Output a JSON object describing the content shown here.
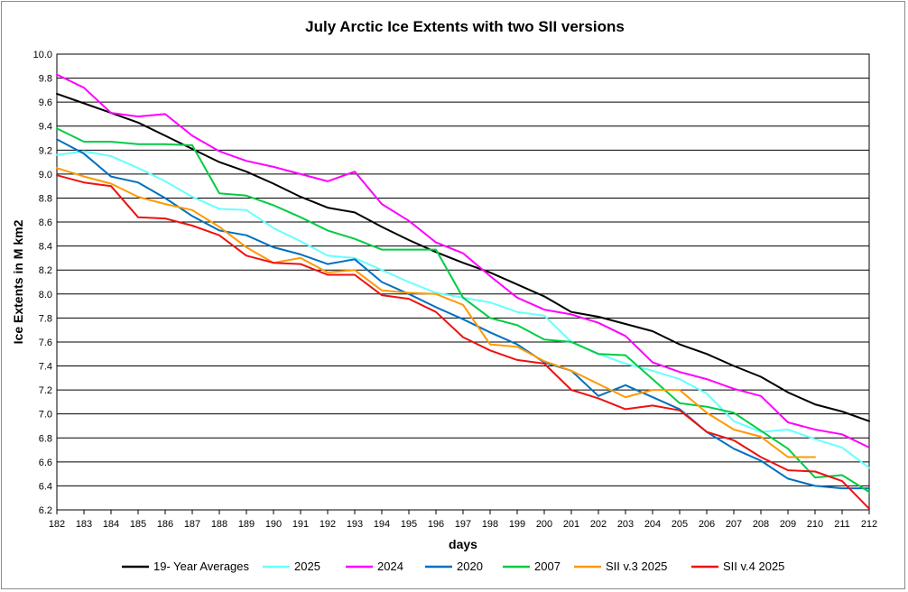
{
  "chart_data": {
    "type": "line",
    "title": "July  Arctic Ice Extents with two SII versions",
    "xlabel": "days",
    "ylabel": "Ice Extents in M km2",
    "xlim": [
      182,
      212
    ],
    "ylim": [
      6.2,
      10.0
    ],
    "ytick_step": 0.2,
    "grid": true,
    "legend_position": "bottom",
    "y_tick_labels": [
      "10.0",
      "9.8",
      "9.6",
      "9.4",
      "9.2",
      "9.0",
      "8.8",
      "8.6",
      "8.4",
      "8.2",
      "8.0",
      "7.8",
      "7.6",
      "7.4",
      "7.2",
      "7.0",
      "6.8",
      "6.6",
      "6.4",
      "6.2"
    ],
    "x_tick_labels": [
      "182",
      "183",
      "184",
      "185",
      "186",
      "187",
      "188",
      "189",
      "190",
      "191",
      "192",
      "193",
      "194",
      "195",
      "196",
      "197",
      "198",
      "199",
      "200",
      "201",
      "202",
      "203",
      "204",
      "205",
      "206",
      "207",
      "208",
      "209",
      "210",
      "211",
      "212"
    ],
    "series": [
      {
        "name": "19- Year Averages",
        "color": "#000000",
        "x_start": 182,
        "values": [
          9.67,
          9.59,
          9.51,
          9.43,
          9.32,
          9.21,
          9.1,
          9.02,
          8.92,
          8.81,
          8.72,
          8.68,
          8.56,
          8.45,
          8.35,
          8.26,
          8.18,
          8.08,
          7.98,
          7.85,
          7.81,
          7.75,
          7.69,
          7.58,
          7.5,
          7.4,
          7.31,
          7.18,
          7.08,
          7.02,
          6.94
        ]
      },
      {
        "name": "2025",
        "color": "#66ffff",
        "x_start": 182,
        "values": [
          9.16,
          9.19,
          9.15,
          9.05,
          8.94,
          8.81,
          8.71,
          8.7,
          8.55,
          8.44,
          8.32,
          8.3,
          8.2,
          8.1,
          8.01,
          7.97,
          7.93,
          7.85,
          7.82,
          7.6,
          7.5,
          7.42,
          7.36,
          7.29,
          7.17,
          6.94,
          6.85,
          6.87,
          6.79,
          6.72,
          6.55
        ]
      },
      {
        "name": "2024",
        "color": "#ff00ff",
        "x_start": 182,
        "values": [
          9.83,
          9.72,
          9.51,
          9.48,
          9.5,
          9.32,
          9.19,
          9.11,
          9.06,
          9.0,
          8.94,
          9.02,
          8.75,
          8.61,
          8.43,
          8.34,
          8.15,
          7.97,
          7.87,
          7.83,
          7.76,
          7.65,
          7.43,
          7.35,
          7.29,
          7.21,
          7.15,
          6.93,
          6.87,
          6.83,
          6.72
        ]
      },
      {
        "name": "2020",
        "color": "#0070c0",
        "x_start": 182,
        "values": [
          9.29,
          9.17,
          8.98,
          8.93,
          8.8,
          8.65,
          8.53,
          8.49,
          8.39,
          8.33,
          8.25,
          8.29,
          8.1,
          8.0,
          7.89,
          7.79,
          7.68,
          7.58,
          7.43,
          7.36,
          7.15,
          7.24,
          7.14,
          7.04,
          6.85,
          6.71,
          6.61,
          6.46,
          6.4,
          6.38,
          6.38
        ]
      },
      {
        "name": "2007",
        "color": "#00cc44",
        "x_start": 182,
        "values": [
          9.38,
          9.27,
          9.27,
          9.25,
          9.25,
          9.24,
          8.84,
          8.82,
          8.74,
          8.64,
          8.53,
          8.46,
          8.37,
          8.37,
          8.37,
          7.97,
          7.8,
          7.74,
          7.62,
          7.6,
          7.5,
          7.49,
          7.29,
          7.09,
          7.06,
          7.01,
          6.86,
          6.71,
          6.47,
          6.49,
          6.35
        ]
      },
      {
        "name": "SII v.3 2025",
        "color": "#ff9900",
        "x_start": 182,
        "values": [
          9.05,
          8.98,
          8.92,
          8.81,
          8.75,
          8.7,
          8.56,
          8.39,
          8.26,
          8.3,
          8.18,
          8.2,
          8.03,
          8.01,
          8.0,
          7.91,
          7.58,
          7.56,
          7.44,
          7.36,
          7.25,
          7.14,
          7.2,
          7.2,
          7.01,
          6.87,
          6.81,
          6.64,
          6.64
        ]
      },
      {
        "name": "SII v.4 2025",
        "color": "#ee1111",
        "x_start": 182,
        "values": [
          8.99,
          8.93,
          8.9,
          8.64,
          8.63,
          8.57,
          8.49,
          8.32,
          8.26,
          8.25,
          8.16,
          8.16,
          7.99,
          7.96,
          7.85,
          7.64,
          7.53,
          7.45,
          7.42,
          7.2,
          7.13,
          7.04,
          7.07,
          7.03,
          6.85,
          6.78,
          6.64,
          6.53,
          6.52,
          6.44,
          6.21
        ]
      }
    ]
  }
}
